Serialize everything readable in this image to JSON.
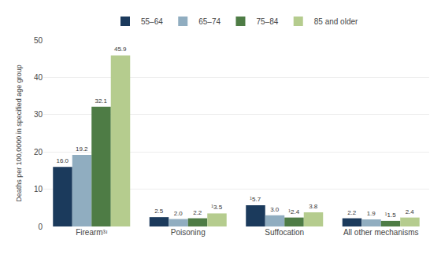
{
  "chart_data": {
    "type": "bar",
    "categories": [
      "Firearm³ʴ",
      "Poisoning",
      "Suffocation",
      "All other mechanisms"
    ],
    "series": [
      {
        "name": "55–64",
        "color": "#1b3a5c",
        "values": [
          16.0,
          2.5,
          5.7,
          2.2
        ],
        "value_labels": [
          "16.0",
          "2.5",
          "¹5.7",
          "2.2"
        ]
      },
      {
        "name": "65–74",
        "color": "#90adc0",
        "values": [
          19.2,
          2.0,
          3.0,
          1.9
        ],
        "value_labels": [
          "19.2",
          "2.0",
          "3.0",
          "1.9"
        ]
      },
      {
        "name": "75–84",
        "color": "#4e7c45",
        "values": [
          32.1,
          2.2,
          2.4,
          1.5
        ],
        "value_labels": [
          "32.1",
          "2.2",
          "¹2.4",
          "¹1.5"
        ]
      },
      {
        "name": "85 and older",
        "color": "#b5cc8e",
        "values": [
          45.9,
          3.5,
          3.8,
          2.4
        ],
        "value_labels": [
          "45.9",
          "¹3.5",
          "3.8",
          "2.4"
        ]
      }
    ],
    "ylabel": "Deaths per 100,0000 in specified age group",
    "ylim": [
      0,
      50
    ],
    "yticks": [
      0,
      10,
      20,
      30,
      40,
      50
    ],
    "grid": true,
    "legend": "top",
    "data_labels": true
  }
}
